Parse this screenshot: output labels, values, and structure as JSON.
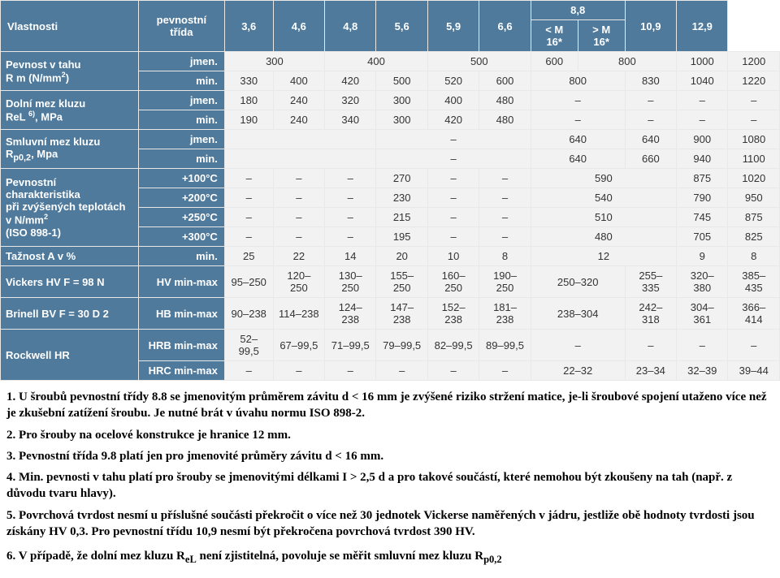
{
  "table": {
    "header_bg": "#4f7a9c",
    "header_fg": "#ffffff",
    "cell_bg": "#f2f2f2",
    "cell_fg": "#333333",
    "border_color": "#e8e8e8",
    "columns": {
      "prop": "Vlastnosti",
      "class": "pevnostní třída",
      "c1": "3,6",
      "c2": "4,6",
      "c3": "4,8",
      "c4": "5,6",
      "c5": "5,9",
      "c6": "6,6",
      "c7_top": "8,8",
      "c7a": "< M 16*",
      "c7b": "> M 16*",
      "c8": "10,9",
      "c9": "12,9"
    },
    "rows": [
      {
        "label": "Pevnost v tahu\nR m (N/mm²)",
        "sub": "jmen.",
        "vals": [
          "300",
          "",
          "400",
          "",
          "500",
          "",
          "600",
          "800",
          "",
          "1000",
          "1200"
        ]
      },
      {
        "label": "",
        "sub": "min.",
        "vals": [
          "330",
          "400",
          "420",
          "500",
          "520",
          "600",
          "800",
          "",
          "830",
          "1040",
          "1220"
        ]
      },
      {
        "label": "Dolní mez kluzu\nReL ⁶⁾, MPa",
        "sub": "jmen.",
        "vals": [
          "180",
          "240",
          "320",
          "300",
          "400",
          "480",
          "–",
          "",
          "–",
          "–",
          "–"
        ]
      },
      {
        "label": "",
        "sub": "min.",
        "vals": [
          "190",
          "240",
          "340",
          "300",
          "420",
          "480",
          "–",
          "",
          "–",
          "–",
          "–"
        ]
      },
      {
        "label": "Smluvní mez kluzu\nRₚ₀,₂, Mpa",
        "sub": "jmen.",
        "vals": [
          "",
          "",
          "",
          "–",
          "",
          "",
          "640",
          "",
          "640",
          "900",
          "1080"
        ]
      },
      {
        "label": "",
        "sub": "min.",
        "vals": [
          "",
          "",
          "",
          "–",
          "",
          "",
          "640",
          "",
          "660",
          "940",
          "1100"
        ]
      },
      {
        "label": "Pevnostní charakteristika\npři zvýšených teplotách\nv N/mm²\n(ISO 898-1)",
        "sub": "+100°C",
        "vals": [
          "–",
          "–",
          "–",
          "270",
          "–",
          "–",
          "590",
          "",
          "",
          "875",
          "1020"
        ]
      },
      {
        "label": "",
        "sub": "+200°C",
        "vals": [
          "–",
          "–",
          "–",
          "230",
          "–",
          "–",
          "540",
          "",
          "",
          "790",
          "950"
        ]
      },
      {
        "label": "",
        "sub": "+250°C",
        "vals": [
          "–",
          "–",
          "–",
          "215",
          "–",
          "–",
          "510",
          "",
          "",
          "745",
          "875"
        ]
      },
      {
        "label": "",
        "sub": "+300°C",
        "vals": [
          "–",
          "–",
          "–",
          "195",
          "–",
          "–",
          "480",
          "",
          "",
          "705",
          "825"
        ]
      },
      {
        "label": "Tažnost A v %",
        "sub": "min.",
        "vals": [
          "25",
          "22",
          "14",
          "20",
          "10",
          "8",
          "12",
          "",
          "",
          "9",
          "8"
        ]
      },
      {
        "label": "Vickers HV F = 98 N",
        "sub": "HV min-max",
        "vals": [
          "95–250",
          "120–250",
          "130–250",
          "155–250",
          "160–250",
          "190–250",
          "250–320",
          "",
          "255–335",
          "320–380",
          "385–435"
        ]
      },
      {
        "label": "Brinell BV F = 30 D 2",
        "sub": "HB min-max",
        "vals": [
          "90–238",
          "114–238",
          "124–238",
          "147–238",
          "152–238",
          "181–238",
          "238–304",
          "",
          "242–318",
          "304–361",
          "366–414"
        ]
      },
      {
        "label": "Rockwell HR",
        "sub": "HRB min-max",
        "vals": [
          "52–99,5",
          "67–99,5",
          "71–99,5",
          "79–99,5",
          "82–99,5",
          "89–99,5",
          "–",
          "",
          "–",
          "–",
          "–"
        ]
      },
      {
        "label": "",
        "sub": "HRC min-max",
        "vals": [
          "–",
          "–",
          "–",
          "–",
          "–",
          "–",
          "22–32",
          "",
          "23–34",
          "32–39",
          "39–44"
        ]
      }
    ]
  },
  "notes": {
    "n1": "1. U šroubů pevnostní třídy 8.8 se jmenovitým průměrem závitu d < 16 mm je zvýšené riziko stržení matice, je-li šroubové spojení utaženo více než je zkušební zatížení šroubu. Je nutné brát v úvahu normu ISO 898-2.",
    "n2": "2. Pro šrouby na ocelové konstrukce je hranice 12 mm.",
    "n3": "3. Pevnostní třída 9.8 platí jen pro jmenovité průměry závitu d < 16 mm.",
    "n4": "4. Min. pevnosti v tahu platí pro šrouby se jmenovitými délkami I > 2,5 d a pro takové součástí, které nemohou být zkoušeny na tah (např. z důvodu tvaru hlavy).",
    "n5a": "5. Povrchová tvrdost nesmí u příslušné součásti překročit o více než 30 jednotek Vickerse naměřených v jádru, jestliže obě hodnoty tvrdosti jsou získány HV 0,3. ",
    "n5b": "Pro pevnostní třídu 10,9 nesmí být překročena povrchová tvrdost 390 HV.",
    "n6a": "6. V případě, že dolní mez kluzu R",
    "n6b": "eL",
    "n6c": " není zjistitelná, povoluje se měřit smluvní mez kluzu R",
    "n6d": "p0,2"
  }
}
